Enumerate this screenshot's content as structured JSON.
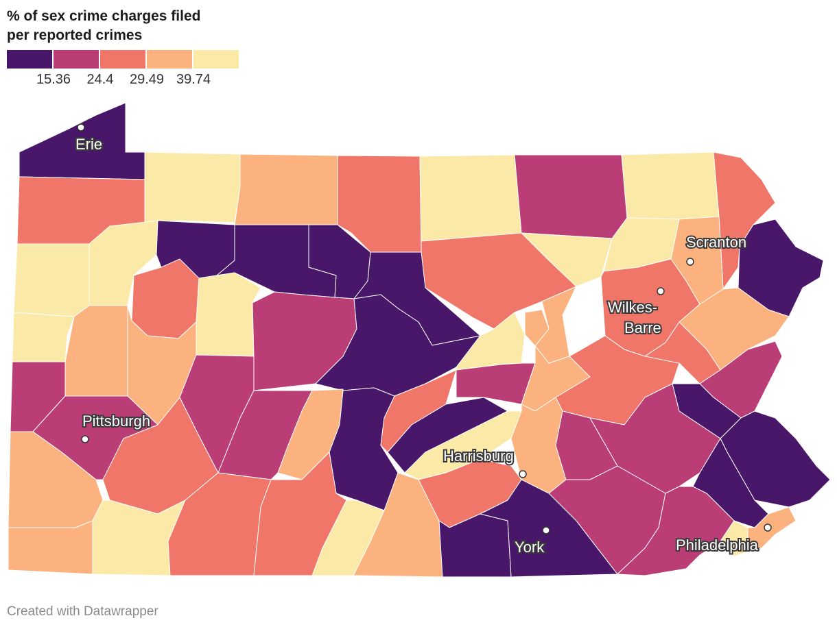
{
  "title": {
    "line1": "% of sex crime charges filed",
    "line2": "per reported crimes"
  },
  "legend": {
    "colors": [
      "#48176a",
      "#bb3d76",
      "#ef7668",
      "#fbb27e",
      "#fbe9a8"
    ],
    "breaks": [
      "15.36",
      "24.4",
      "29.49",
      "39.74"
    ]
  },
  "cities": {
    "erie": "Erie",
    "pittsburgh": "Pittsburgh",
    "scranton": "Scranton",
    "wilkes_barre_1": "Wilkes-",
    "wilkes_barre_2": "Barre",
    "harrisburg": "Harrisburg",
    "york": "York",
    "philadelphia": "Philadelphia"
  },
  "footer": "Created with Datawrapper"
}
